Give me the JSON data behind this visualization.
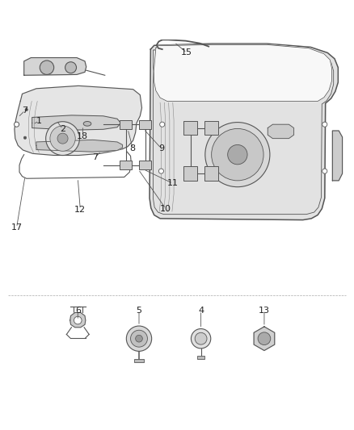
{
  "title": "",
  "background_color": "#ffffff",
  "line_color": "#555555",
  "figure_width": 4.38,
  "figure_height": 5.33,
  "dpi": 100,
  "font_size": 8,
  "label_color": "#222222"
}
